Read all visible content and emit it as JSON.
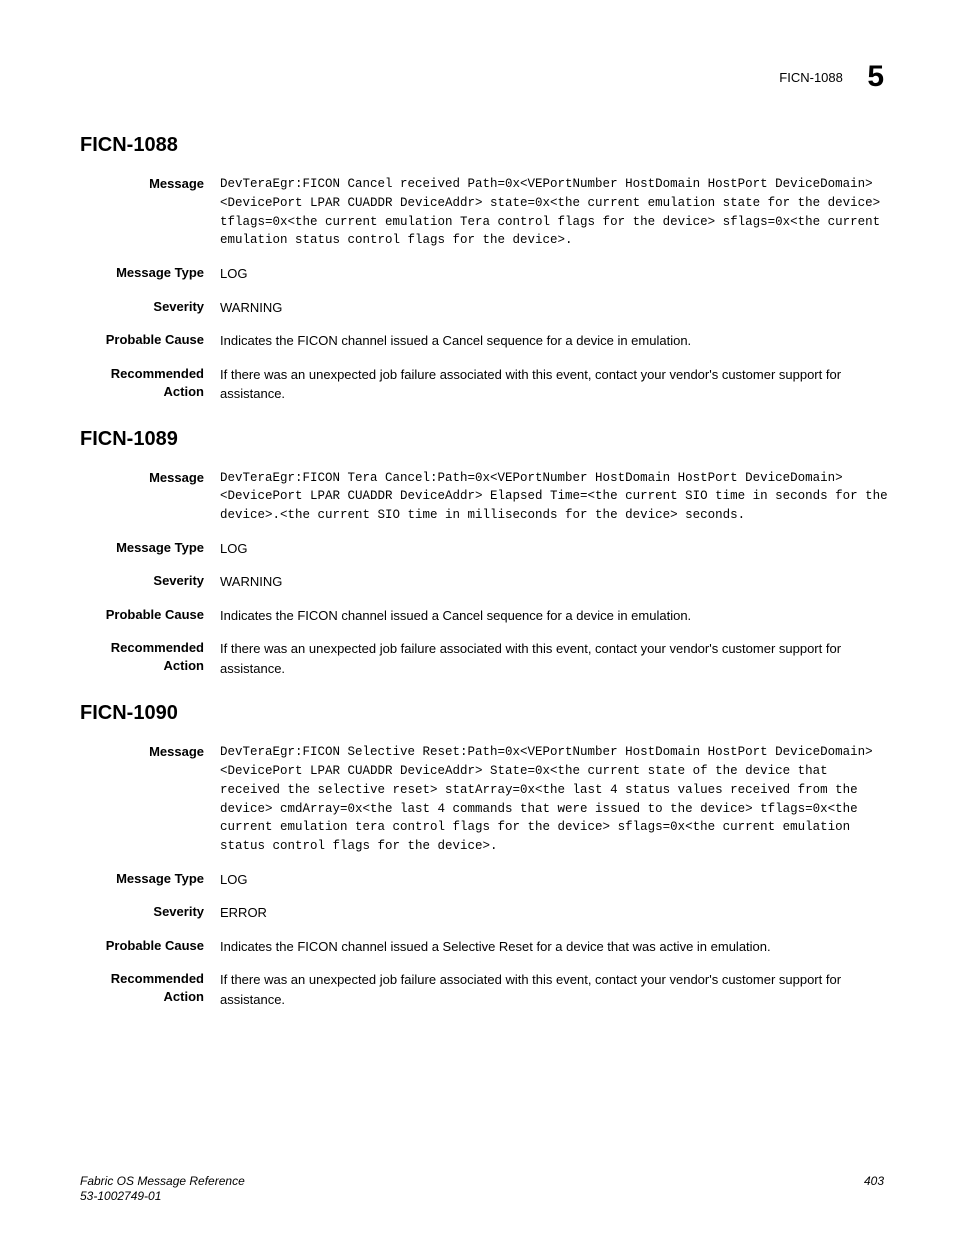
{
  "header": {
    "code": "FICN-1088",
    "chapter": "5"
  },
  "sections": [
    {
      "title": "FICN-1088",
      "message": "DevTeraEgr:FICON Cancel received Path=0x<VEPortNumber HostDomain HostPort DeviceDomain><DevicePort LPAR CUADDR DeviceAddr> state=0x<the current emulation state for the device> tflags=0x<the current emulation Tera control flags for the device> sflags=0x<the current emulation status control flags for the device>.",
      "message_type": "LOG",
      "severity": "WARNING",
      "probable_cause": "Indicates the FICON channel issued a Cancel sequence for a device in emulation.",
      "recommended_action": "If there was an unexpected job failure associated with this event, contact your vendor's customer support for assistance."
    },
    {
      "title": "FICN-1089",
      "message": "DevTeraEgr:FICON Tera Cancel:Path=0x<VEPortNumber HostDomain HostPort DeviceDomain><DevicePort LPAR CUADDR DeviceAddr> Elapsed Time=<the current SIO time in seconds for the device>.<the current SIO time in milliseconds for the device> seconds.",
      "message_type": "LOG",
      "severity": "WARNING",
      "probable_cause": "Indicates the FICON channel issued a Cancel sequence for a device in emulation.",
      "recommended_action": "If there was an unexpected job failure associated with this event, contact your vendor's customer support for assistance."
    },
    {
      "title": "FICN-1090",
      "message": "DevTeraEgr:FICON Selective Reset:Path=0x<VEPortNumber HostDomain HostPort DeviceDomain><DevicePort LPAR CUADDR DeviceAddr> State=0x<the current state of the device that received the selective reset> statArray=0x<the last 4 status values received from the device> cmdArray=0x<the last 4 commands that were issued to the device> tflags=0x<the current emulation tera control flags for the device> sflags=0x<the current emulation status control flags for the device>.",
      "message_type": "LOG",
      "severity": "ERROR",
      "probable_cause": "Indicates the FICON channel issued a Selective Reset for a device that was active in emulation.",
      "recommended_action": "If there was an unexpected job failure associated with this event, contact your vendor's customer support for assistance."
    }
  ],
  "labels": {
    "message": "Message",
    "message_type": "Message Type",
    "severity": "Severity",
    "probable_cause": "Probable Cause",
    "recommended_action_l1": "Recommended",
    "recommended_action_l2": "Action"
  },
  "footer": {
    "title": "Fabric OS Message Reference",
    "docnum": "53-1002749-01",
    "page": "403"
  }
}
